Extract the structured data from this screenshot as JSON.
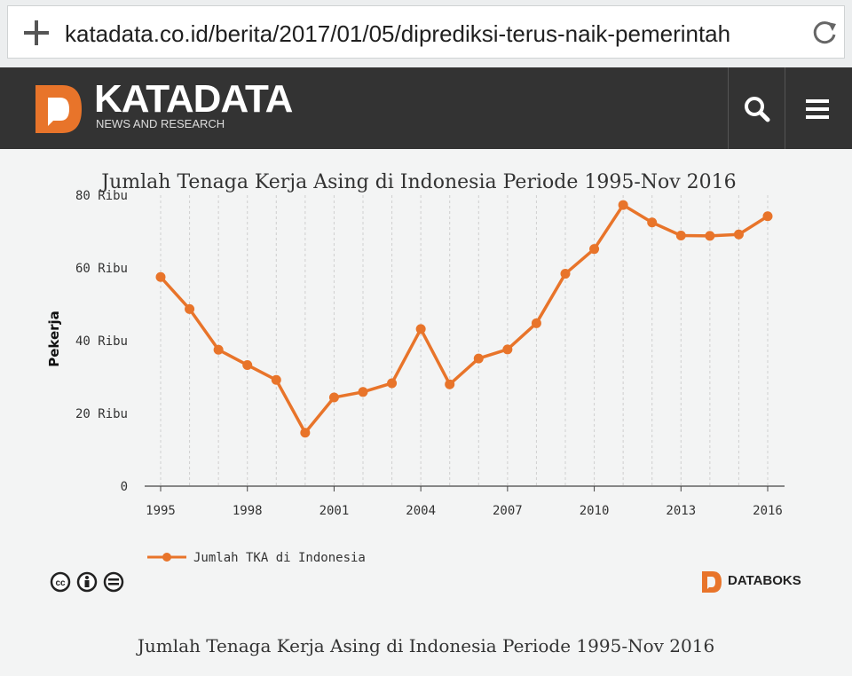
{
  "browser": {
    "url": "katadata.co.id/berita/2017/01/05/diprediksi-terus-naik-pemerintah"
  },
  "site": {
    "logo_name": "KATADATA",
    "logo_tagline": "NEWS AND RESEARCH",
    "brand_color": "#e8742a"
  },
  "chart_data": {
    "type": "line",
    "title": "Jumlah Tenaga Kerja Asing di Indonesia Periode 1995-Nov 2016",
    "xlabel": "",
    "ylabel": "Pekerja",
    "x": [
      1995,
      1996,
      1997,
      1998,
      1999,
      2000,
      2001,
      2002,
      2003,
      2004,
      2005,
      2006,
      2007,
      2008,
      2009,
      2010,
      2011,
      2012,
      2013,
      2014,
      2015,
      2016
    ],
    "xtick_labels": [
      "1995",
      "1998",
      "2001",
      "2004",
      "2007",
      "2010",
      "2013",
      "2016"
    ],
    "ytick_labels": [
      "0",
      "20 Ribu",
      "40 Ribu",
      "60 Ribu",
      "80 Ribu"
    ],
    "ylim": [
      0,
      80000
    ],
    "series": [
      {
        "name": "Jumlah TKA di Indonesia",
        "color": "#e8742a",
        "values": [
          57500,
          48700,
          37500,
          33300,
          29200,
          14700,
          24400,
          25900,
          28300,
          43200,
          28000,
          35100,
          37600,
          44800,
          58400,
          65200,
          77300,
          72500,
          68900,
          68800,
          69200,
          74200
        ]
      }
    ],
    "legend_position": "bottom-left",
    "grid": true
  },
  "footer": {
    "license_icons": [
      "cc-icon",
      "attribution-icon",
      "no-derivatives-icon"
    ],
    "source_brand": "DATABOKS"
  },
  "caption": "Jumlah Tenaga Kerja Asing di Indonesia Periode 1995-Nov 2016"
}
